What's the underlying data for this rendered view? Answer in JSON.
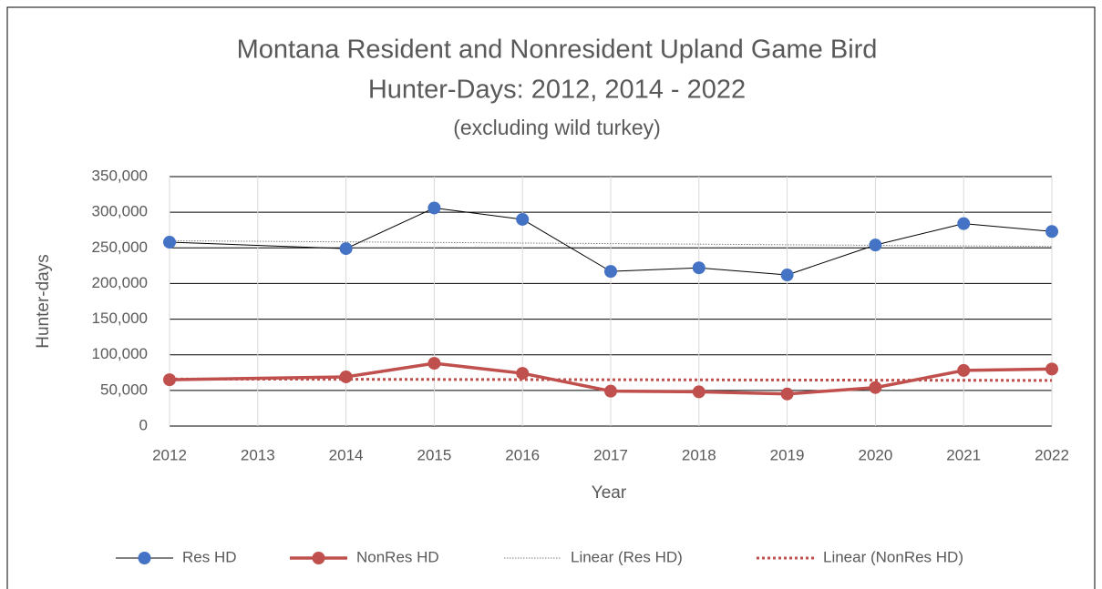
{
  "chart_data": {
    "type": "line",
    "title": "Montana Resident and Nonresident Upland Game Bird",
    "title_line2": "Hunter-Days: 2012, 2014 - 2022",
    "subtitle": "(excluding wild turkey)",
    "x_label": "Year",
    "y_label": "Hunter-days",
    "x": [
      2012,
      2014,
      2015,
      2016,
      2017,
      2018,
      2019,
      2020,
      2021,
      2022
    ],
    "xlim": [
      2012,
      2022
    ],
    "xticks": [
      2012,
      2013,
      2014,
      2015,
      2016,
      2017,
      2018,
      2019,
      2020,
      2021,
      2022
    ],
    "ylim": [
      0,
      350000
    ],
    "yticks": [
      0,
      {
        "value": 50000,
        "label": "50,000"
      },
      {
        "value": 100000,
        "label": "100,000"
      },
      {
        "value": 150000,
        "label": "150,000"
      },
      {
        "value": 200000,
        "label": "200,000"
      },
      {
        "value": 250000,
        "label": "250,000"
      },
      {
        "value": 300000,
        "label": "300,000"
      },
      {
        "value": 350000,
        "label": "350,000"
      }
    ],
    "grid": true,
    "legend": "bottom",
    "series": [
      {
        "name": "Res HD",
        "color": "#4472c4",
        "line_color": "#000000",
        "line_width": 1,
        "marker": true,
        "values": [
          258000,
          249000,
          306000,
          290000,
          217000,
          222000,
          212000,
          254000,
          284000,
          273000
        ]
      },
      {
        "name": "NonRes HD",
        "color": "#c0504d",
        "line_color": "#c0504d",
        "line_width": 3.5,
        "marker": true,
        "values": [
          65000,
          69000,
          88000,
          74000,
          49000,
          48000,
          45000,
          54000,
          78000,
          80000
        ]
      },
      {
        "name": "Linear (Res HD)",
        "color": "#7f7f7f",
        "line_color": "#7f7f7f",
        "line_width": 1,
        "dash": "1.5 1.5",
        "marker": false,
        "x": [
          2012,
          2022
        ],
        "values": [
          260000,
          252000
        ]
      },
      {
        "name": "Linear (NonRes HD)",
        "color": "#c0504d",
        "line_color": "#c0504d",
        "line_width": 3,
        "dash": "3 3",
        "marker": false,
        "x": [
          2012,
          2022
        ],
        "values": [
          66000,
          64000
        ]
      }
    ]
  }
}
